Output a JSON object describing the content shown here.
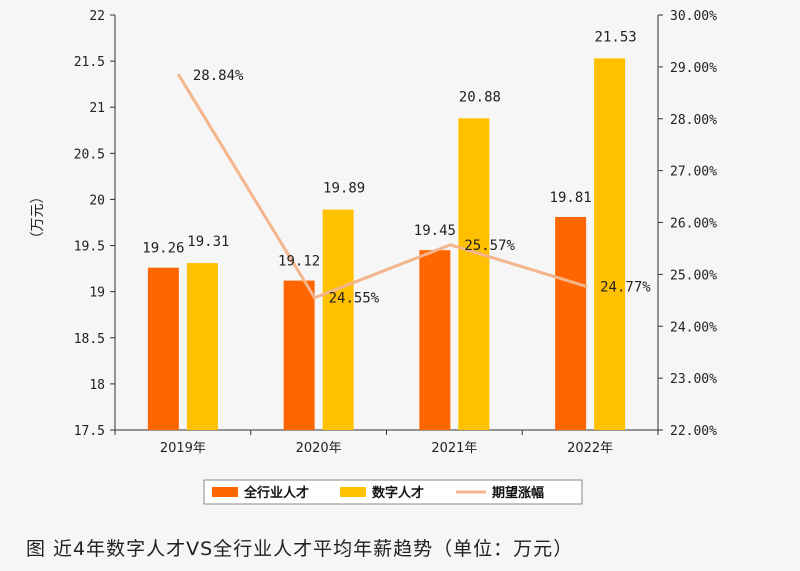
{
  "chart_data": {
    "type": "bar",
    "categories": [
      "2019年",
      "2020年",
      "2021年",
      "2022年"
    ],
    "series": [
      {
        "name": "全行业人才",
        "type": "bar",
        "axis": "left",
        "values": [
          19.26,
          19.12,
          19.45,
          19.81
        ],
        "color": "#ff6600"
      },
      {
        "name": "数字人才",
        "type": "bar",
        "axis": "left",
        "values": [
          19.31,
          19.89,
          20.88,
          21.53
        ],
        "color": "#ffc000"
      },
      {
        "name": "期望涨幅",
        "type": "line",
        "axis": "right",
        "values": [
          28.84,
          24.55,
          25.57,
          24.77
        ],
        "color": "#f5b58c"
      }
    ],
    "data_labels": {
      "bars_a": [
        "19.26",
        "19.12",
        "19.45",
        "19.81"
      ],
      "bars_b": [
        "19.31",
        "19.89",
        "20.88",
        "21.53"
      ],
      "line": [
        "28.84%",
        "24.55%",
        "25.57%",
        "24.77%"
      ]
    },
    "ylabel": "（万元）",
    "ylim": [
      17.5,
      22
    ],
    "y_ticks": [
      "17.5",
      "18",
      "18.5",
      "19",
      "19.5",
      "20",
      "20.5",
      "21",
      "21.5",
      "22"
    ],
    "y2lim": [
      22,
      30
    ],
    "y2_ticks": [
      "22.00%",
      "23.00%",
      "24.00%",
      "25.00%",
      "26.00%",
      "27.00%",
      "28.00%",
      "29.00%",
      "30.00%"
    ],
    "legend_position": "bottom",
    "grid": false
  },
  "caption": "图  近4年数字人才VS全行业人才平均年薪趋势（单位：万元）"
}
